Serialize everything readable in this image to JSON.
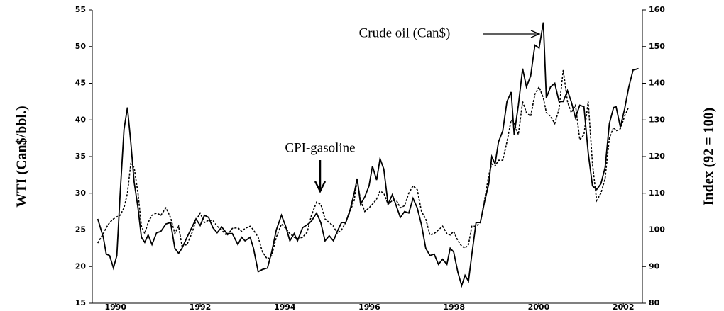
{
  "chart_data": {
    "type": "line",
    "y_label": "WTI (Can$/bbl.)",
    "y2_label": "Index (92 = 100)",
    "annotations": [
      {
        "text": "Crude oil (Can$)"
      },
      {
        "text": "CPI-gasoline"
      }
    ],
    "xlim": [
      1989.45,
      2002.45
    ],
    "xticks": [
      1990,
      1992,
      1994,
      1996,
      1998,
      2000,
      2002
    ],
    "ylim": [
      15,
      55
    ],
    "yticks": [
      15,
      20,
      25,
      30,
      35,
      40,
      45,
      50,
      55
    ],
    "y2lim": [
      80,
      160
    ],
    "y2ticks": [
      80,
      90,
      100,
      110,
      120,
      130,
      140,
      150,
      160
    ],
    "x": [
      1989.58,
      1989.71,
      1989.78,
      1989.86,
      1989.95,
      1990.03,
      1990.11,
      1990.2,
      1990.28,
      1990.36,
      1990.44,
      1990.53,
      1990.61,
      1990.69,
      1990.77,
      1990.86,
      1990.97,
      1991.07,
      1991.19,
      1991.3,
      1991.4,
      1991.49,
      1991.57,
      1991.69,
      1991.8,
      1991.9,
      1992.0,
      1992.1,
      1992.2,
      1992.3,
      1992.4,
      1992.51,
      1992.63,
      1992.76,
      1992.89,
      1992.98,
      1993.06,
      1993.18,
      1993.26,
      1993.37,
      1993.47,
      1993.59,
      1993.69,
      1993.8,
      1993.92,
      1994.02,
      1994.12,
      1994.22,
      1994.3,
      1994.42,
      1994.53,
      1994.63,
      1994.75,
      1994.85,
      1994.95,
      1995.05,
      1995.15,
      1995.24,
      1995.34,
      1995.44,
      1995.54,
      1995.64,
      1995.71,
      1995.79,
      1995.89,
      1995.99,
      1996.07,
      1996.17,
      1996.25,
      1996.34,
      1996.44,
      1996.54,
      1996.64,
      1996.73,
      1996.83,
      1996.93,
      1997.03,
      1997.13,
      1997.23,
      1997.33,
      1997.43,
      1997.53,
      1997.63,
      1997.73,
      1997.83,
      1997.91,
      1997.99,
      1998.09,
      1998.18,
      1998.26,
      1998.34,
      1998.42,
      1998.52,
      1998.62,
      1998.72,
      1998.82,
      1998.89,
      1998.97,
      1999.05,
      1999.15,
      1999.25,
      1999.35,
      1999.42,
      1999.52,
      1999.62,
      1999.71,
      1999.81,
      1999.91,
      2000.01,
      2000.11,
      2000.18,
      2000.28,
      2000.38,
      2000.48,
      2000.58,
      2000.68,
      2000.77,
      2000.87,
      2000.97,
      2001.07,
      2001.17,
      2001.27,
      2001.37,
      2001.47,
      2001.57,
      2001.67,
      2001.77,
      2001.83,
      2001.93,
      2002.03,
      2002.13,
      2002.23,
      2002.36
    ],
    "series": [
      {
        "color": "#000000",
        "dash": false,
        "axis": "y",
        "values": [
          26.5,
          24,
          21.7,
          21.5,
          19.8,
          21.5,
          30,
          38.7,
          41.7,
          37,
          31.5,
          28,
          24,
          23.3,
          24.3,
          23,
          24.6,
          24.8,
          25.8,
          26,
          22.5,
          21.8,
          22.5,
          24,
          25.3,
          26.5,
          25.6,
          27,
          26.7,
          25.3,
          24.6,
          25.4,
          24.5,
          24.5,
          23,
          24,
          23.5,
          24,
          22.5,
          19.3,
          19.6,
          19.8,
          22,
          25,
          27,
          25.5,
          23.5,
          24.5,
          23.5,
          25.3,
          25.7,
          26.2,
          27.3,
          26,
          23.5,
          24.2,
          23.5,
          24.8,
          26,
          26,
          27.7,
          30,
          32,
          28.5,
          29.5,
          31,
          33.7,
          31.8,
          34.7,
          33.3,
          28.5,
          29.8,
          28.2,
          26.7,
          27.5,
          27.3,
          29.3,
          28,
          25.7,
          22.5,
          21.5,
          21.7,
          20.3,
          21,
          20.3,
          22.5,
          22,
          19.2,
          17.4,
          18.8,
          18,
          21.7,
          26,
          26,
          28.8,
          31.3,
          35,
          34,
          37,
          38.5,
          42.5,
          43.8,
          38,
          42,
          47,
          44.5,
          46,
          50.2,
          49.8,
          53.3,
          43,
          44.5,
          45,
          42.5,
          42.5,
          44,
          42.5,
          40.3,
          42,
          41.8,
          35.5,
          31,
          30.5,
          31.3,
          33.5,
          39.5,
          41.7,
          41.8,
          39,
          41.5,
          44.5,
          46.8,
          47
        ]
      },
      {
        "color": "#000000",
        "dash": true,
        "axis": "y2",
        "values": [
          96.4,
          99,
          100.6,
          102,
          103,
          103.6,
          104,
          106,
          110,
          118,
          117,
          110,
          101,
          99,
          102,
          104,
          104.6,
          104,
          106,
          103.4,
          99,
          101,
          95.6,
          96,
          99,
          102.6,
          104.6,
          102,
          102.6,
          102.6,
          101,
          100,
          98.4,
          100.4,
          100.6,
          99.6,
          100.4,
          101,
          100,
          98,
          94,
          92,
          93,
          98,
          101.6,
          100.4,
          99,
          98,
          97.6,
          98,
          99.4,
          104,
          107.6,
          107,
          103,
          102,
          101,
          99,
          100,
          102,
          105,
          108,
          113.6,
          108,
          105,
          106,
          107,
          108.4,
          110.6,
          110,
          107,
          108,
          108,
          106,
          106.6,
          110,
          112,
          111,
          105,
          103,
          98.6,
          99,
          100,
          101,
          99,
          98.6,
          99.6,
          97,
          95.6,
          95,
          96,
          101,
          101,
          102,
          108,
          115,
          118,
          117.4,
          119,
          119,
          124,
          130,
          129,
          126,
          135,
          132,
          131,
          137,
          139,
          136,
          132,
          131,
          129,
          133,
          143.6,
          135,
          132,
          134,
          124.6,
          126,
          135,
          118,
          108,
          110,
          114,
          125,
          128,
          127,
          127.6,
          131,
          133.6,
          null,
          null
        ]
      }
    ]
  }
}
